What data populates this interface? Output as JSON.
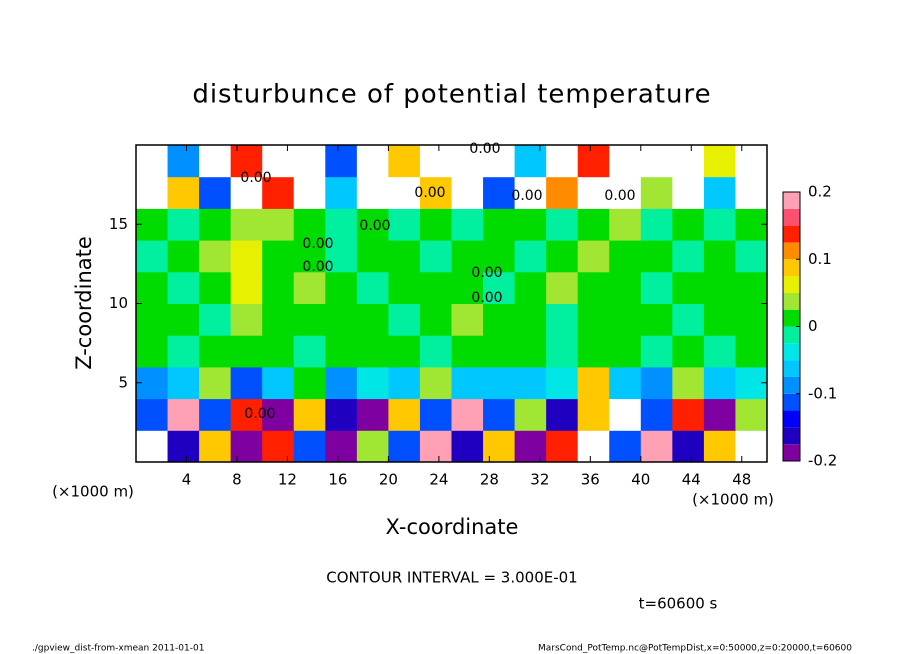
{
  "chart_data": {
    "type": "heatmap",
    "title": "disturbunce of potential temperature",
    "x_label": "X-coordinate",
    "y_label": "Z-coordinate",
    "x_unit_left": "(×1000 m)",
    "x_unit_right": "(×1000 m)",
    "contour_interval": "CONTOUR INTERVAL = 3.000E-01",
    "time_label": "t=60600 s",
    "footer_left": "./gpview_dist-from-xmean  2011-01-01",
    "footer_right": "MarsCond_PotTemp.nc@PotTempDist,x=0:50000,z=0:20000,t=60600",
    "contour_labels": [
      "0.00",
      "0.00",
      "0.00",
      "0.00",
      "0.00",
      "0.00",
      "0.00",
      "0.00",
      "0.00",
      "0.00",
      "0.00"
    ],
    "xlim": [
      0,
      50
    ],
    "ylim": [
      0,
      20
    ],
    "xticks": [
      4,
      8,
      12,
      16,
      20,
      24,
      28,
      32,
      36,
      40,
      44,
      48
    ],
    "yticks": [
      5,
      10,
      15
    ],
    "colorbar_lim": [
      -0.2,
      0.2
    ],
    "colorbar_ticks": [
      -0.2,
      -0.1,
      0,
      0.1,
      0.2
    ],
    "levels": [
      -0.2,
      -0.175,
      -0.15,
      -0.125,
      -0.1,
      -0.075,
      -0.05,
      -0.025,
      0,
      0.025,
      0.05,
      0.075,
      0.1,
      0.125,
      0.15,
      0.175,
      0.2
    ],
    "colors": [
      "#7f00a0",
      "#2000c0",
      "#0000ff",
      "#0050ff",
      "#0090ff",
      "#00c8ff",
      "#00e6e6",
      "#00f0a0",
      "#00dc00",
      "#a0e632",
      "#e6f000",
      "#ffc800",
      "#ff8c00",
      "#ff2000",
      "#ff5070",
      "#ffa0b4"
    ],
    "out_of_range_color": "#ffffff",
    "z": [
      [
        0.25,
        -0.15,
        0.1,
        -0.2,
        0.15,
        -0.1,
        -0.18,
        0.05,
        -0.12,
        0.2,
        -0.15,
        0.1,
        -0.2,
        0.15,
        0.25,
        -0.1,
        0.2,
        -0.15,
        0.1,
        0.25
      ],
      [
        -0.12,
        0.2,
        -0.1,
        0.15,
        -0.18,
        0.1,
        -0.15,
        -0.2,
        0.1,
        -0.1,
        0.18,
        -0.12,
        0.05,
        -0.15,
        0.1,
        0.22,
        -0.1,
        0.15,
        -0.18,
        0.05
      ],
      [
        -0.08,
        -0.05,
        0.05,
        -0.1,
        -0.06,
        0.02,
        -0.08,
        -0.04,
        -0.06,
        0.05,
        -0.05,
        -0.07,
        -0.06,
        -0.03,
        0.1,
        -0.05,
        -0.08,
        0.05,
        -0.06,
        -0.04
      ],
      [
        0.01,
        0.0,
        0.01,
        0.02,
        0.01,
        0.0,
        0.01,
        0.02,
        0.01,
        0.0,
        0.01,
        0.02,
        0.01,
        0.0,
        0.01,
        0.02,
        0.0,
        0.01,
        0.0,
        0.01
      ],
      [
        0.01,
        0.01,
        0.0,
        0.03,
        0.01,
        0.01,
        0.02,
        0.01,
        0.0,
        0.01,
        0.03,
        0.01,
        0.01,
        0.0,
        0.02,
        0.01,
        0.01,
        0.0,
        0.01,
        0.01
      ],
      [
        0.01,
        0.0,
        0.02,
        0.06,
        0.01,
        0.03,
        0.01,
        0.0,
        0.01,
        0.02,
        0.01,
        0.0,
        0.01,
        0.03,
        0.02,
        0.01,
        0.0,
        0.01,
        0.02,
        0.01
      ],
      [
        0.0,
        0.01,
        0.03,
        0.06,
        0.02,
        0.01,
        0.0,
        0.01,
        0.01,
        0.0,
        0.01,
        0.01,
        0.0,
        0.01,
        0.04,
        0.01,
        0.01,
        0.0,
        0.01,
        0.0
      ],
      [
        0.01,
        0.0,
        0.01,
        0.05,
        0.03,
        0.01,
        0.0,
        0.01,
        0.0,
        0.01,
        0.0,
        0.01,
        0.01,
        0.0,
        0.01,
        0.03,
        0.0,
        0.01,
        0.0,
        0.01
      ],
      [
        0.25,
        0.1,
        -0.1,
        0.25,
        0.15,
        0.25,
        -0.05,
        0.25,
        0.25,
        0.08,
        0.25,
        -0.1,
        0.25,
        0.12,
        0.25,
        0.25,
        0.05,
        0.25,
        -0.05,
        0.25
      ],
      [
        0.25,
        -0.08,
        0.25,
        0.15,
        0.25,
        0.25,
        -0.1,
        0.25,
        0.1,
        0.25,
        0.25,
        0.25,
        -0.05,
        0.25,
        0.15,
        0.25,
        0.25,
        0.25,
        0.06,
        0.25
      ]
    ]
  }
}
